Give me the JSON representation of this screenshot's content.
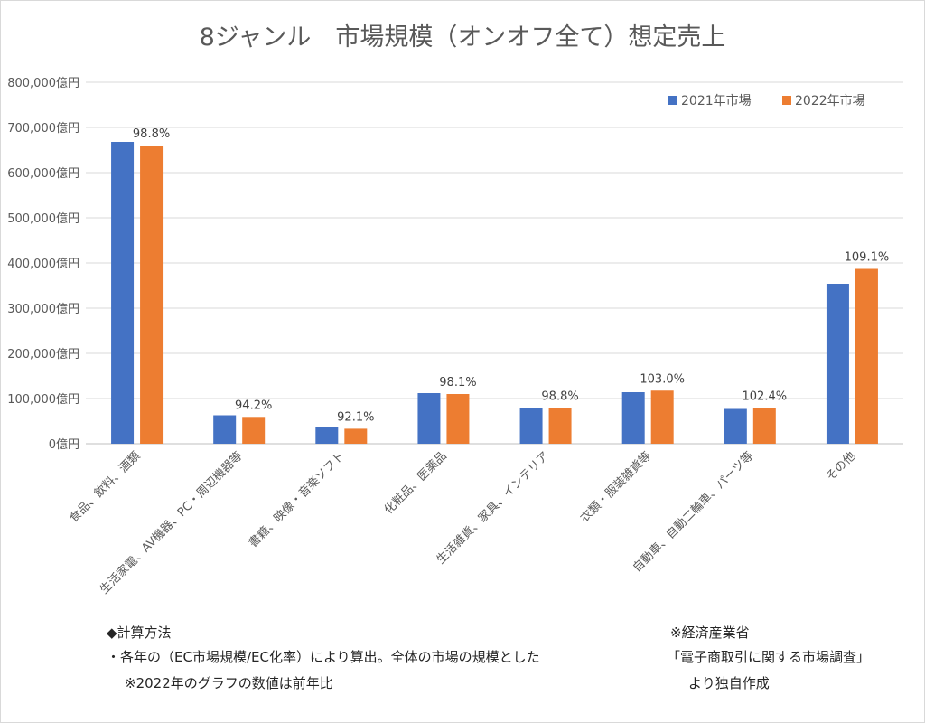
{
  "chart_data": {
    "type": "bar",
    "title": "8ジャンル　市場規模（オンオフ全て）想定売上",
    "categories": [
      "食品、飲料、酒類",
      "生活家電、AV機器、PC・周辺機器等",
      "書籍、映像・音楽ソフト",
      "化粧品、医薬品",
      "生活雑貨、家具、インテリア",
      "衣類・服装雑貨等",
      "自動車、自動二輪車、パーツ等",
      "その他"
    ],
    "series": [
      {
        "name": "2021年市場",
        "color": "#4472c4",
        "values": [
          668000,
          63000,
          36000,
          112000,
          80000,
          114000,
          77000,
          354000
        ]
      },
      {
        "name": "2022年市場",
        "color": "#ed7d31",
        "values": [
          660000,
          59400,
          33200,
          110000,
          79000,
          117500,
          78800,
          387000
        ]
      }
    ],
    "data_labels": [
      "98.8%",
      "94.2%",
      "92.1%",
      "98.1%",
      "98.8%",
      "103.0%",
      "102.4%",
      "109.1%"
    ],
    "ylim": [
      0,
      800000
    ],
    "yticks": [
      "0億円",
      "100,000億円",
      "200,000億円",
      "300,000億円",
      "400,000億円",
      "500,000億円",
      "600,000億円",
      "700,000億円",
      "800,000億円"
    ],
    "xlabel": "",
    "ylabel": "",
    "legend": "top-right",
    "grid": true
  },
  "notes": {
    "method_heading": "◆計算方法",
    "method_line1": "・各年の（EC市場規模/EC化率）により算出。全体の市場の規模とした",
    "method_line2": "※2022年のグラフの数値は前年比",
    "source_line1": "※経済産業省",
    "source_line2": "「電子商取引に関する市場調査」",
    "source_line3": "より独自作成"
  }
}
